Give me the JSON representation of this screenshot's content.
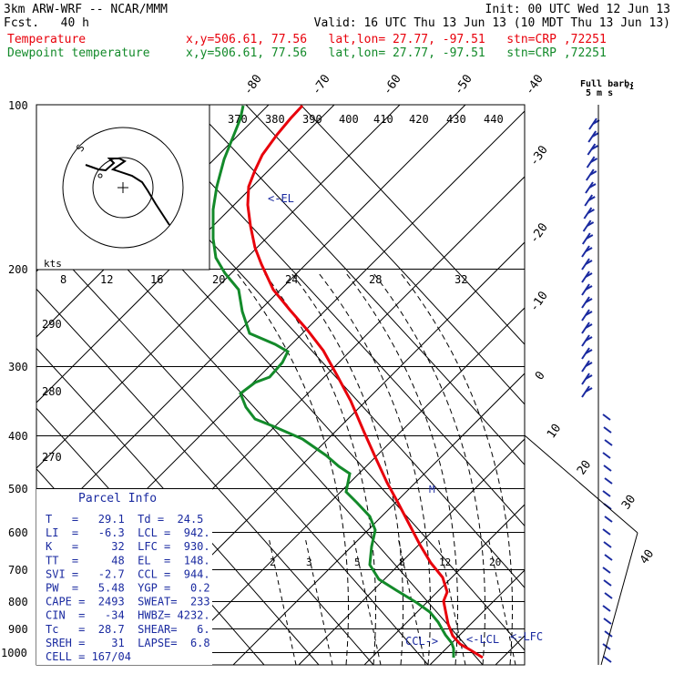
{
  "header": {
    "model": "3km ARW-WRF -- NCAR/MMM",
    "fcst": "Fcst.   40 h",
    "init": "Init: 00 UTC Wed 12 Jun 13",
    "valid": "Valid: 16 UTC Thu 13 Jun 13 (10 MDT Thu 13 Jun 13)",
    "temp_label": "Temperature",
    "dew_label": "Dewpoint temperature",
    "location": "x,y=506.61, 77.56   lat,lon= 27.77, -97.51   stn=CRP ,72251"
  },
  "colors": {
    "temperature": "#e8000b",
    "dewpoint": "#138a2a",
    "parcel": "#1a2aa0"
  },
  "chart_data": {
    "type": "line",
    "title": "",
    "ylabel": "",
    "y_scale": "log-pressure",
    "pressure_ticks": [
      "100",
      "200",
      "300",
      "400",
      "500",
      "600",
      "700",
      "800",
      "900",
      "1000"
    ],
    "temp_tick_labels_top": [
      "-80",
      "-70",
      "-60",
      "-50",
      "-40"
    ],
    "temp_tick_labels_right": [
      "-30",
      "-20",
      "-10",
      "0",
      "10",
      "20",
      "30",
      "40"
    ],
    "mixing_ratio_labels": [
      "2",
      "3",
      "5",
      "8",
      "12",
      "20"
    ],
    "series": [
      {
        "name": "Temperature",
        "points": [
          [
            332,
            116
          ],
          [
            319,
            130
          ],
          [
            304,
            148
          ],
          [
            288,
            170
          ],
          [
            280,
            187
          ],
          [
            273,
            205
          ],
          [
            272,
            225
          ],
          [
            275,
            248
          ],
          [
            280,
            272
          ],
          [
            287,
            290
          ],
          [
            300,
            318
          ],
          [
            318,
            340
          ],
          [
            338,
            363
          ],
          [
            355,
            385
          ],
          [
            370,
            412
          ],
          [
            385,
            440
          ],
          [
            400,
            475
          ],
          [
            413,
            504
          ],
          [
            425,
            530
          ],
          [
            437,
            552
          ],
          [
            449,
            575
          ],
          [
            461,
            598
          ],
          [
            473,
            618
          ],
          [
            486,
            634
          ],
          [
            491,
            650
          ],
          [
            487,
            660
          ],
          [
            489,
            670
          ],
          [
            492,
            685
          ],
          [
            497,
            698
          ],
          [
            505,
            707
          ],
          [
            517,
            714
          ],
          [
            530,
            722
          ]
        ]
      },
      {
        "name": "Dewpoint temperature",
        "points": [
          [
            267,
            116
          ],
          [
            264,
            130
          ],
          [
            256,
            150
          ],
          [
            246,
            175
          ],
          [
            238,
            205
          ],
          [
            234,
            230
          ],
          [
            234,
            262
          ],
          [
            237,
            283
          ],
          [
            247,
            300
          ],
          [
            262,
            318
          ],
          [
            266,
            342
          ],
          [
            274,
            366
          ],
          [
            302,
            378
          ],
          [
            316,
            386
          ],
          [
            310,
            398
          ],
          [
            296,
            414
          ],
          [
            280,
            420
          ],
          [
            264,
            432
          ],
          [
            270,
            447
          ],
          [
            280,
            460
          ],
          [
            300,
            468
          ],
          [
            332,
            482
          ],
          [
            358,
            500
          ],
          [
            372,
            512
          ],
          [
            384,
            520
          ],
          [
            382,
            530
          ],
          [
            380,
            540
          ],
          [
            392,
            552
          ],
          [
            406,
            567
          ],
          [
            412,
            582
          ],
          [
            408,
            600
          ],
          [
            406,
            620
          ],
          [
            416,
            636
          ],
          [
            435,
            648
          ],
          [
            458,
            662
          ],
          [
            472,
            672
          ],
          [
            481,
            683
          ],
          [
            489,
            697
          ],
          [
            496,
            706
          ],
          [
            498,
            712
          ],
          [
            498,
            722
          ]
        ]
      }
    ],
    "hodograph": {
      "speed_label": "kts",
      "speed_ticks": [
        "8",
        "12",
        "16",
        "20",
        "24",
        "28",
        "32"
      ],
      "theta_labels": [
        "370",
        "380",
        "390",
        "400",
        "410",
        "420",
        "430",
        "440"
      ],
      "theta_labels_left": [
        "290",
        "280",
        "270"
      ],
      "direction_label": "S"
    },
    "annotations": [
      "<-EL",
      "CCL->",
      "<-LCL",
      "<-LFC",
      "M",
      "Full barb:",
      "5 m s"
    ]
  },
  "parcel_info": {
    "title": "Parcel Info",
    "rows": [
      "T   =   29.1  Td =  24.5",
      "LI  =   -6.3  LCL =  942.",
      "K   =     32  LFC =  930.",
      "TT  =     48  EL  =  148.",
      "SVI =   -2.7  CCL =  944.",
      "PW  =   5.48  YGP =   0.2",
      "CAPE =  2493  SWEAT=  233",
      "CIN  =   -34  HWBZ= 4232.",
      "Tc   =  28.7  SHEAR=   6.",
      "SREH =    31  LAPSE=  6.8",
      "CELL = 167/04"
    ]
  }
}
